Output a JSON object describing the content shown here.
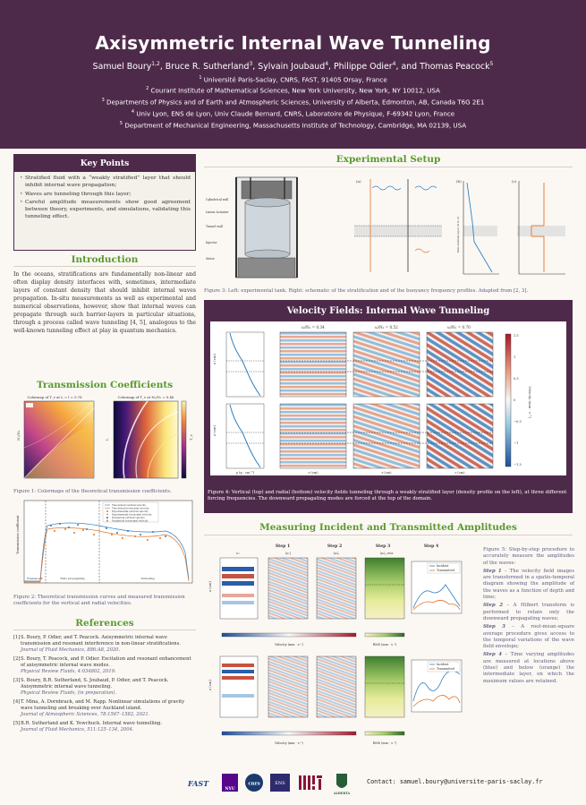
{
  "header": {
    "title": "Axisymmetric Internal Wave Tunneling",
    "authors": [
      {
        "name": "Samuel Boury",
        "sup": "1,2"
      },
      {
        "name": "Bruce R. Sutherland",
        "sup": "3"
      },
      {
        "name": "Sylvain Joubaud",
        "sup": "4"
      },
      {
        "name": "Philippe Odier",
        "sup": "4"
      },
      {
        "name": "Thomas Peacock",
        "sup": "5"
      }
    ],
    "author_and": "and",
    "affiliations": [
      {
        "sup": "1",
        "text": "Université Paris-Saclay, CNRS, FAST, 91405 Orsay, France"
      },
      {
        "sup": "2",
        "text": "Courant Institute of Mathematical Sciences, New York University, New York, NY 10012, USA"
      },
      {
        "sup": "3",
        "text": "Departments of Physics and of Earth and Atmospheric Sciences, University of Alberta, Edmonton, AB, Canada T6G 2E1"
      },
      {
        "sup": "4",
        "text": "Univ Lyon, ENS de Lyon, Univ Claude Bernard, CNRS, Laboratoire de Physique, F-69342 Lyon, France"
      },
      {
        "sup": "5",
        "text": "Department of Mechanical Engineering, Massachusetts Institute of Technology, Cambridge, MA 02139, USA"
      }
    ]
  },
  "key_points": {
    "title": "Key Points",
    "items": [
      "Stratified fluid with a “weakly stratified” layer that should inhibit internal wave propagation;",
      "Waves are tunneling through this layer;",
      "Careful amplitude measurements show good agreement between theory, experiments, and simulations, validating this tunneling effect."
    ]
  },
  "introduction": {
    "title": "Introduction",
    "text": "In the oceans, stratifications are fundamentally non-linear and often display density interfaces with, sometimes, intermediate layers of constant density that should inhibit internal waves propagation. In-situ measurements as well as experimental and numerical observations, however, show that internal waves can propagate through such barrier-layers in particular situations, through a process called wave tunneling [4, 5], analogous to the well-known tunneling effect at play in quantum mechanics."
  },
  "transmission": {
    "title": "Transmission Coefficients",
    "fig1_left_title": "Colormap of T_v at L = l = 0.78",
    "fig1_right_title": "Colormap of T_v at N₂/N₁ = 0.46",
    "fig1_left_ylabel": "N₂/N₁",
    "fig1_right_ylabel": "L",
    "fig1_colorbar_label": "T_v",
    "fig1_caption": "Figure 1: Colormaps of the theoretical transmission coefficients.",
    "fig2_legend": [
      "Theoretical vertical velocity",
      "Theoretical horizontal velocity",
      "Experimental vertical velocity",
      "Experimental horizontal velocity",
      "Numerical vertical velocity",
      "Numerical horizontal velocity"
    ],
    "fig2_ylabel": "Transmission coefficient",
    "fig2_regions": [
      "Evanescent",
      "Fully propagating",
      "Tunneling"
    ],
    "fig2_caption": "Figure 2: Theoretical transmission curves and measured transmission coefficients for the vertical and radial velocities."
  },
  "references": {
    "title": "References",
    "items": [
      {
        "num": "[1]",
        "text": "S. Boury, P. Odier, and T. Peacock. Axisymmetric internal wave transmission and resonant interference in non-linear stratifications.",
        "journal": "Journal of Fluid Mechanics, 886:A8, 2020."
      },
      {
        "num": "[2]",
        "text": "S. Boury, T. Peacock, and P. Odier. Excitation and resonant enhancement of axisymmetric internal wave modes.",
        "journal": "Physical Review Fluids, 4:034802, 2019."
      },
      {
        "num": "[3]",
        "text": "S. Boury, B.R. Sutherland, S. Joubaud, P. Odier, and T. Peacock. Axisymmetric internal wave tunneling.",
        "journal": "Physical Review Fluids, (in preparation)."
      },
      {
        "num": "[4]",
        "text": "T. Mina, A. Dornbrack, and M. Rapp. Nonlinear simulations of gravity wave tunneling and breaking over Auckland island.",
        "journal": "Journal of Atmospheric Sciences, 78:1567–1582, 2021."
      },
      {
        "num": "[5]",
        "text": "B.R. Sutherland and K. Yewchuck. Internal wave tunnelling.",
        "journal": "Journal of Fluid Mechanics, 511:125–134, 2004."
      }
    ]
  },
  "experimental": {
    "title": "Experimental Setup",
    "panel_labels": [
      "(a)",
      "(b)",
      "(c)"
    ],
    "tank_labels": [
      "Cylindrical wall",
      "Linear Actuator",
      "Tunnel wall",
      "Injector",
      "Motor"
    ],
    "ylabel_b": "Non-uniform layer (0 to 2)",
    "caption": "Figure 3: Left: experimental tank. Right: schematic of the stratification and of the buoyancy frequency profiles. Adapted from [2, 3]."
  },
  "velocity": {
    "title": "Velocity Fields: Internal Wave Tunneling",
    "column_titles": [
      "ω/N₁ = 0.34",
      "ω/N₁ = 0.52",
      "ω/N₁ = 0.70"
    ],
    "z_ticks": [
      "−10",
      "−20",
      "−30",
      "−40",
      "−50",
      "−60"
    ],
    "rho_ticks": [
      "1",
      "1.02",
      "1.04"
    ],
    "rho_label": "ρ (g · cm⁻³)",
    "r_ticks": [
      "−20",
      "−10",
      "0",
      "+10",
      "+20"
    ],
    "r_label": "r (cm)",
    "z_label": "z (cm)",
    "colorbar_ticks": [
      "1.5",
      "1",
      "0.5",
      "0",
      "−0.5",
      "−1",
      "−1.5"
    ],
    "colorbar_label": "Velocity (mm · s⁻¹)",
    "caption": "Figure 4: Vertical (top) and radial (bottom) velocity fields tunneling through a weakly stratified layer (density profile on the left), at three different forcing frequencies. The downward propagating modes are forced at the top of the domain."
  },
  "measuring": {
    "title": "Measuring Incident and Transmitted Amplitudes",
    "steps": [
      "Step 1",
      "Step 2",
      "Step 3",
      "Step 4"
    ],
    "sym_labels": [
      "u₁",
      "|u₁|",
      "|u₁|ₓ",
      "|u₁|ₓ,rms"
    ],
    "legend": [
      "Incident",
      "Transmitted"
    ],
    "velocity_label": "Velocity (mm · s⁻¹)",
    "rms_label": "RMS (mm · s⁻¹)",
    "vel_ticks": [
      "−1.5",
      "−0.75",
      "0",
      "0.75",
      "1.5"
    ],
    "rms_ticks": [
      "0",
      "1",
      "2"
    ],
    "time_ticks": [
      "0",
      "5",
      "10",
      "15",
      "20"
    ],
    "time_ticks2": [
      "55",
      "110",
      "165",
      "220"
    ],
    "t_label": "t (s)",
    "z_label": "z (cm)",
    "caption_intro": "Figure 5: Step-by-step procedure to accurately measure the amplitudes of the waves:",
    "caption_steps": [
      {
        "label": "Step 1",
        "text": "The velocity field images are transformed in a spatio-temporal diagram showing the amplitude of the waves as a function of depth and time;"
      },
      {
        "label": "Step 2",
        "text": "A Hilbert transform is performed to retain only the downward propagating waves;"
      },
      {
        "label": "Step 3",
        "text": "A root-mean-square average procedure gives access to the temporal variations of the wave field envelope;"
      },
      {
        "label": "Step 4",
        "text": "Time varying amplitudes are measured at locations above (blue) and below (orange) the intermediate layer, on which the maximum values are retained."
      }
    ]
  },
  "footer": {
    "logos": [
      "FAST",
      "NYU",
      "cnrs",
      "ENS",
      "MIT",
      "ALBERTA"
    ],
    "contact_label": "Contact:",
    "contact_email": "samuel.boury@universite-paris-saclay.fr"
  },
  "colors": {
    "header_bg": "#4e2a4a",
    "section_title": "#5a9a2f",
    "caption": "#5b5b80",
    "incident": "#2f7fc0",
    "transmitted": "#e0742a"
  }
}
